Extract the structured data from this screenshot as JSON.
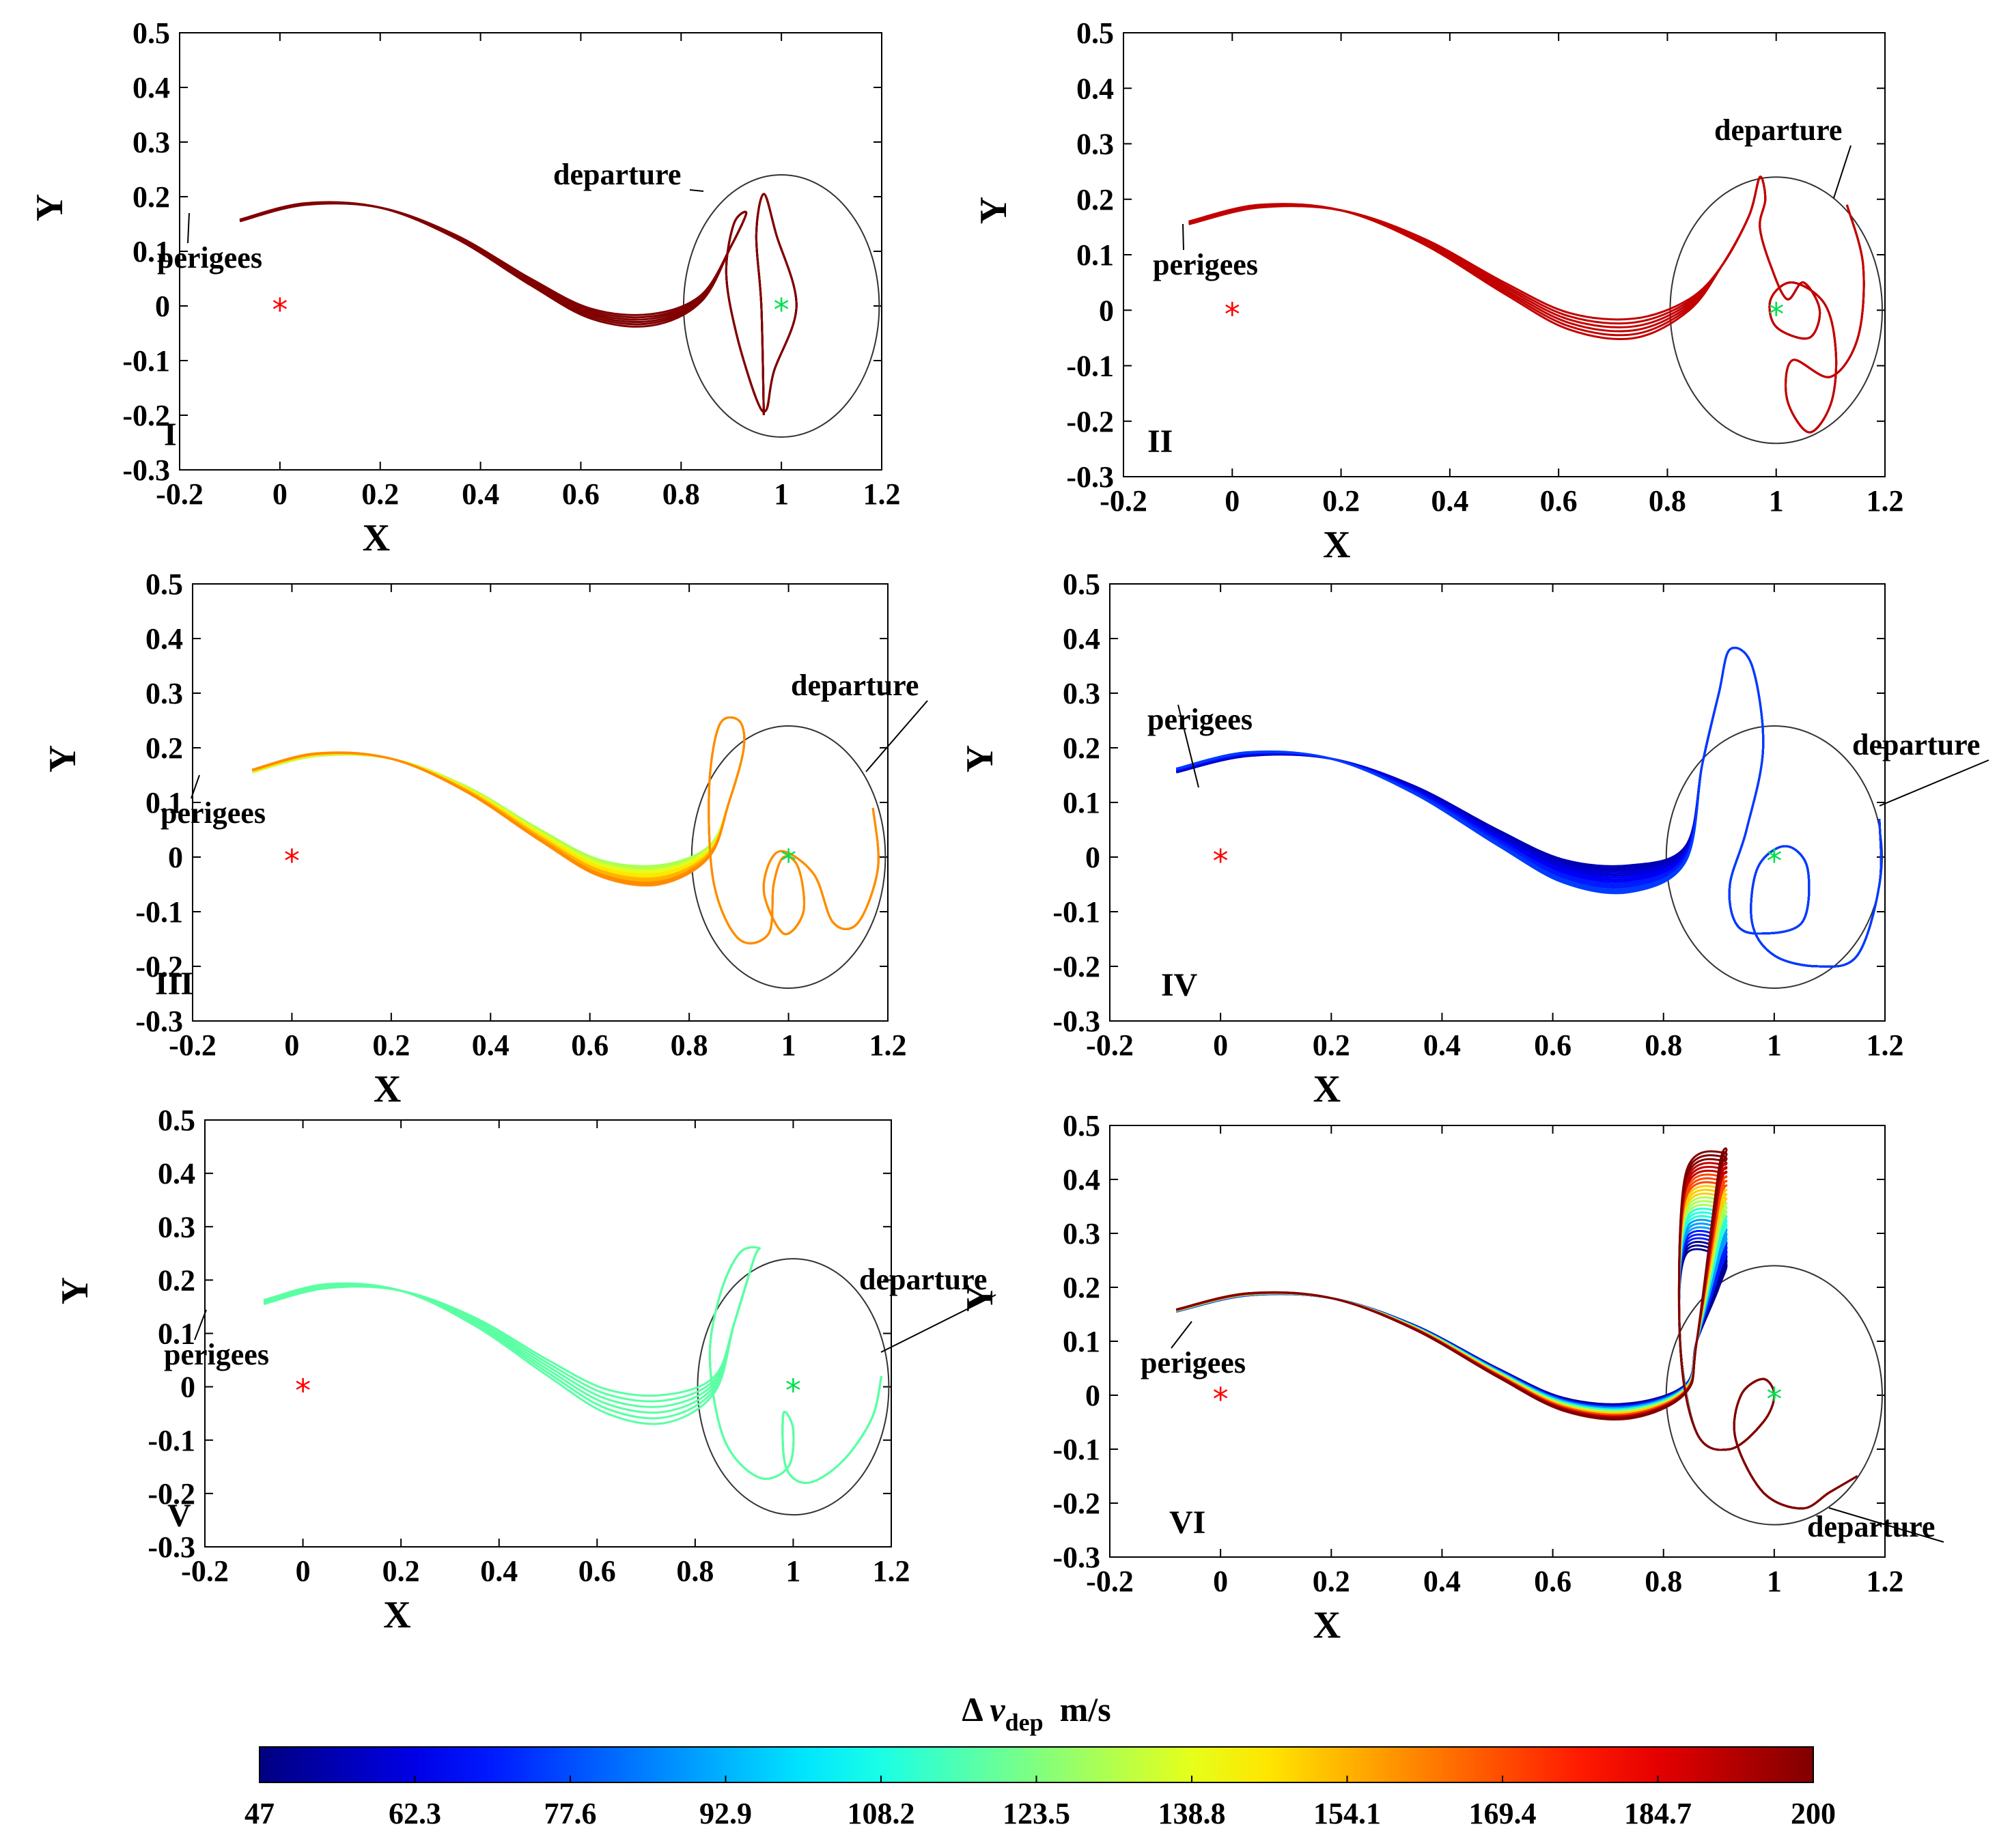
{
  "chart_data": [
    {
      "type": "line",
      "panel": "I",
      "xlabel": "X",
      "ylabel": "Y",
      "xlim": [
        -0.2,
        1.2
      ],
      "ylim": [
        -0.3,
        0.5
      ],
      "xticks": [
        "-0.2",
        "0",
        "0.2",
        "0.4",
        "0.6",
        "0.8",
        "1",
        "1.2"
      ],
      "yticks": [
        "-0.3",
        "-0.2",
        "-0.1",
        "0",
        "0.1",
        "0.2",
        "0.3",
        "0.4",
        "0.5"
      ],
      "annotations": {
        "perigees": "perigees",
        "departure": "departure"
      },
      "earth": [
        0,
        0
      ],
      "moon": [
        1,
        0
      ],
      "circle": {
        "center": [
          1,
          0
        ],
        "rx": 0.195,
        "ry": 0.24
      },
      "delta_v_m_s": [
        200
      ],
      "bundle": "I"
    },
    {
      "type": "line",
      "panel": "II",
      "xlabel": "X",
      "ylabel": "Y",
      "xlim": [
        -0.2,
        1.2
      ],
      "ylim": [
        -0.3,
        0.5
      ],
      "xticks": [
        "-0.2",
        "0",
        "0.2",
        "0.4",
        "0.6",
        "0.8",
        "1",
        "1.2"
      ],
      "yticks": [
        "-0.3",
        "-0.2",
        "-0.1",
        "0",
        "0.1",
        "0.2",
        "0.3",
        "0.4",
        "0.5"
      ],
      "annotations": {
        "perigees": "perigees",
        "departure": "departure"
      },
      "earth": [
        0,
        0
      ],
      "moon": [
        1,
        0
      ],
      "circle": {
        "center": [
          1,
          0
        ],
        "rx": 0.195,
        "ry": 0.24
      },
      "delta_v_m_s": [
        190
      ],
      "bundle": "II"
    },
    {
      "type": "line",
      "panel": "III",
      "xlabel": "X",
      "ylabel": "Y",
      "xlim": [
        -0.2,
        1.2
      ],
      "ylim": [
        -0.3,
        0.5
      ],
      "xticks": [
        "-0.2",
        "0",
        "0.2",
        "0.4",
        "0.6",
        "0.8",
        "1",
        "1.2"
      ],
      "yticks": [
        "-0.3",
        "-0.2",
        "-0.1",
        "0",
        "0.1",
        "0.2",
        "0.3",
        "0.4",
        "0.5"
      ],
      "annotations": {
        "perigees": "perigees",
        "departure": "departure"
      },
      "earth": [
        0,
        0
      ],
      "moon": [
        1,
        0
      ],
      "circle": {
        "center": [
          1,
          0
        ],
        "rx": 0.195,
        "ry": 0.24
      },
      "delta_v_m_s": [
        130,
        138,
        146,
        154,
        160
      ],
      "bundle": "III"
    },
    {
      "type": "line",
      "panel": "IV",
      "xlabel": "X",
      "ylabel": "Y",
      "xlim": [
        -0.2,
        1.2
      ],
      "ylim": [
        -0.3,
        0.5
      ],
      "xticks": [
        "-0.2",
        "0",
        "0.2",
        "0.4",
        "0.6",
        "0.8",
        "1",
        "1.2"
      ],
      "yticks": [
        "-0.3",
        "-0.2",
        "-0.1",
        "0",
        "0.1",
        "0.2",
        "0.3",
        "0.4",
        "0.5"
      ],
      "annotations": {
        "perigees": "perigees",
        "departure": "departure"
      },
      "earth": [
        0,
        0
      ],
      "moon": [
        1,
        0
      ],
      "circle": {
        "center": [
          1,
          0
        ],
        "rx": 0.195,
        "ry": 0.24
      },
      "delta_v_m_s": [
        55,
        60,
        65,
        70,
        75
      ],
      "bundle": "IV"
    },
    {
      "type": "line",
      "panel": "V",
      "xlabel": "X",
      "ylabel": "Y",
      "xlim": [
        -0.2,
        1.2
      ],
      "ylim": [
        -0.3,
        0.5
      ],
      "xticks": [
        "-0.2",
        "0",
        "0.2",
        "0.4",
        "0.6",
        "0.8",
        "1",
        "1.2"
      ],
      "yticks": [
        "-0.3",
        "-0.2",
        "-0.1",
        "0",
        "0.1",
        "0.2",
        "0.3",
        "0.4",
        "0.5"
      ],
      "annotations": {
        "perigees": "perigees",
        "departure": "departure"
      },
      "earth": [
        0,
        0
      ],
      "moon": [
        1,
        0
      ],
      "circle": {
        "center": [
          1,
          0
        ],
        "rx": 0.195,
        "ry": 0.24
      },
      "delta_v_m_s": [
        118
      ],
      "bundle": "V"
    },
    {
      "type": "line",
      "panel": "VI",
      "xlabel": "X",
      "ylabel": "Y",
      "xlim": [
        -0.2,
        1.2
      ],
      "ylim": [
        -0.3,
        0.5
      ],
      "xticks": [
        "-0.2",
        "0",
        "0.2",
        "0.4",
        "0.6",
        "0.8",
        "1",
        "1.2"
      ],
      "yticks": [
        "-0.3",
        "-0.2",
        "-0.1",
        "0",
        "0.1",
        "0.2",
        "0.3",
        "0.4",
        "0.5"
      ],
      "annotations": {
        "perigees": "perigees",
        "departure": "departure"
      },
      "earth": [
        0,
        0
      ],
      "moon": [
        1,
        0
      ],
      "circle": {
        "center": [
          1,
          0
        ],
        "rx": 0.195,
        "ry": 0.24
      },
      "delta_v_m_s": [
        50,
        70,
        90,
        110,
        130,
        150,
        170,
        190,
        200
      ],
      "bundle": "VI"
    }
  ],
  "colorbar": {
    "title_prefix": "Δ",
    "title_symbol": "v",
    "title_subscript": "dep",
    "title_unit": "m/s",
    "min": 47,
    "max": 200,
    "ticks": [
      "47",
      "62.3",
      "77.6",
      "92.9",
      "108.2",
      "123.5",
      "138.8",
      "154.1",
      "169.4",
      "184.7",
      "200"
    ],
    "colormap": "jet"
  },
  "colors": {
    "earth_marker": "#ff0000",
    "moon_marker": "#00e050",
    "circle": "#333333"
  }
}
